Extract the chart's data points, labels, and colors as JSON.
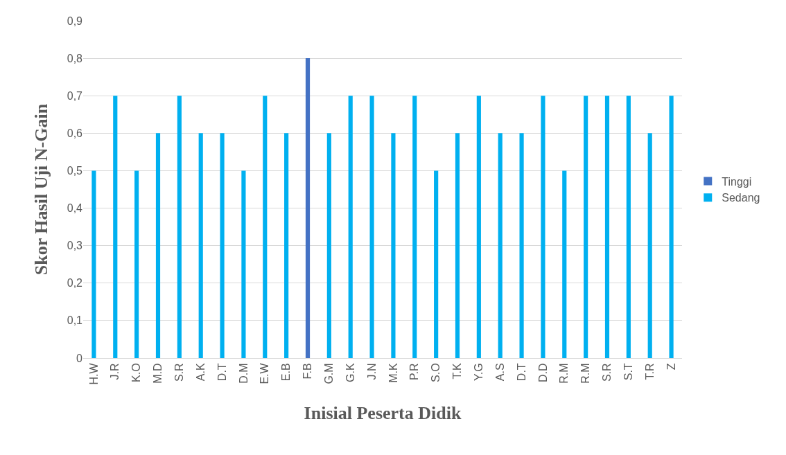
{
  "chart_data": {
    "type": "bar",
    "xlabel": "Inisial Peserta Didik",
    "ylabel": "Skor Hasil Uji N-Gain",
    "categories": [
      "H.W",
      "J.R",
      "K.O",
      "M.D",
      "S.R",
      "A.K",
      "D.T",
      "D.M",
      "E.W",
      "E.B",
      "F.B",
      "G.M",
      "G.K",
      "J.N",
      "M.K",
      "P.R",
      "S.O",
      "T.K",
      "Y.G",
      "A.S",
      "D.T",
      "D.D",
      "R.M",
      "R.M",
      "S.R",
      "S.T",
      "T.R",
      "Z"
    ],
    "series": [
      {
        "name": "Tinggi",
        "color": "#4472c4",
        "values": [
          null,
          null,
          null,
          null,
          null,
          null,
          null,
          null,
          null,
          null,
          0.8,
          null,
          null,
          null,
          null,
          null,
          null,
          null,
          null,
          null,
          null,
          null,
          null,
          null,
          null,
          null,
          null,
          null
        ]
      },
      {
        "name": "Sedang",
        "color": "#00b0f0",
        "values": [
          0.5,
          0.7,
          0.5,
          0.6,
          0.7,
          0.6,
          0.6,
          0.5,
          0.7,
          0.6,
          null,
          0.6,
          0.7,
          0.7,
          0.6,
          0.7,
          0.5,
          0.6,
          0.7,
          0.6,
          0.6,
          0.7,
          0.5,
          0.7,
          0.7,
          0.7,
          0.6,
          0.7
        ]
      }
    ],
    "ylim": [
      0,
      0.9
    ],
    "yticks": [
      {
        "value": 0,
        "label": "0"
      },
      {
        "value": 0.1,
        "label": "0,1"
      },
      {
        "value": 0.2,
        "label": "0,2"
      },
      {
        "value": 0.3,
        "label": "0,3"
      },
      {
        "value": 0.4,
        "label": "0,4"
      },
      {
        "value": 0.5,
        "label": "0,5"
      },
      {
        "value": 0.6,
        "label": "0,6"
      },
      {
        "value": 0.7,
        "label": "0,7"
      },
      {
        "value": 0.8,
        "label": "0,8"
      },
      {
        "value": 0.9,
        "label": "0,9"
      }
    ],
    "grid": "y",
    "legend": "right"
  }
}
